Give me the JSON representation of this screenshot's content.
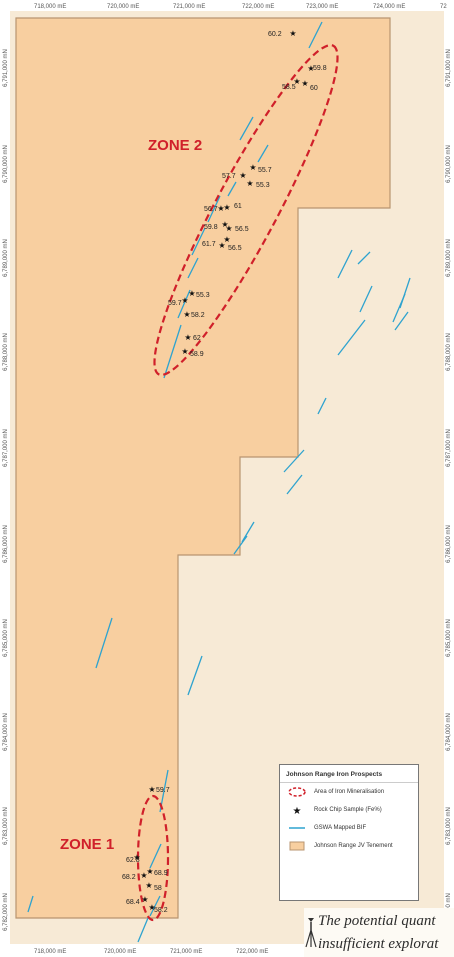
{
  "map": {
    "top_ticks": [
      "718,000 mE",
      "720,000 mE",
      "721,000 mE",
      "722,000 mE",
      "723,000 mE",
      "724,000 mE",
      "72"
    ],
    "bottom_ticks": [
      "718,000 mE",
      "720,000 mE",
      "721,000 mE",
      "722,000 mE"
    ],
    "left_ticks": [
      "6,791,000 mN",
      "6,790,000 mN",
      "6,789,000 mN",
      "6,788,000 mN",
      "6,787,000 mN",
      "6,786,000 mN",
      "6,785,000 mN",
      "6,784,000 mN",
      "6,783,000 mN",
      "6,782,000 mN"
    ],
    "right_ticks": [
      "6,791,000 mN",
      "6,790,000 mN",
      "6,789,000 mN",
      "6,788,000 mN",
      "6,787,000 mN",
      "6,786,000 mN",
      "6,785,000 mN",
      "6,784,000 mN",
      "6,783,000 mN",
      "6,782,000 mN"
    ],
    "zones": [
      {
        "label": "ZONE 2"
      },
      {
        "label": "ZONE 1"
      }
    ],
    "samples_zone2": [
      "60.2",
      "59.8",
      "58.5",
      "60",
      "57.7",
      "55.7",
      "55.3",
      "56.7",
      "61",
      "59.8",
      "56.5",
      "61.7",
      "56.5",
      "59.7",
      "55.3",
      "58.2",
      "62",
      "58.9"
    ],
    "samples_zone1": [
      "59.7",
      "62.8",
      "68.2",
      "68.9",
      "58",
      "68.4",
      "58.2"
    ],
    "colors": {
      "tenement_fill": "#f8cfa0",
      "tenement_edge": "#b89570",
      "background": "#f7ead6",
      "bif_line": "#2ea3cf",
      "zone_outline": "#d0202a"
    }
  },
  "legend": {
    "title": "Johnson Range Iron Prospects",
    "items": [
      {
        "label": "Area of Iron Mineralisation",
        "icon": "dashed-ellipse-icon"
      },
      {
        "label": "Rock Chip Sample (Fe%)",
        "icon": "star-icon"
      },
      {
        "label": "GSWA Mapped BIF",
        "icon": "blue-line-icon"
      },
      {
        "label": "Johnson Range JV Tenement",
        "icon": "orange-box-icon"
      }
    ]
  },
  "caption": {
    "line1": "The potential quant",
    "line2": "insufficient explorat",
    "icon": "survey-tripod-icon"
  }
}
